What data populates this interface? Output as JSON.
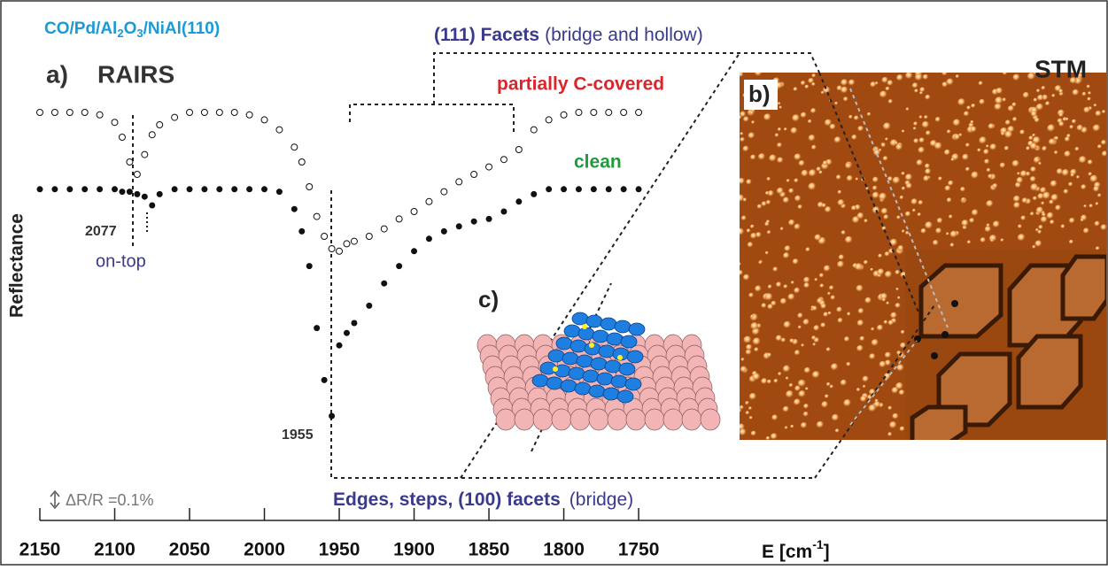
{
  "chart_data": {
    "type": "line",
    "sample_label": {
      "parts": [
        "CO/Pd/Al",
        "2",
        "O",
        "3",
        "/NiAl(110)"
      ]
    },
    "panel_a": "a)",
    "title": "RAIRS",
    "panel_b": "b)",
    "stm_label": "STM",
    "panel_c": "c)",
    "y_label": "Reflectance",
    "x_label": {
      "parts": [
        "E [cm",
        "-1",
        "]"
      ]
    },
    "annotations": {
      "facets111": "(111) Facets",
      "facets111_sites": "(bridge and hollow)",
      "edges": "Edges, steps, (100) facets",
      "edges_sites": "(bridge)",
      "peak_ontop": "2077",
      "ontop": "on-top",
      "peak_bridge": "1955",
      "scale": "ΔR/R =0.1%"
    },
    "xlim": [
      2150,
      1440
    ],
    "xticks": [
      2150,
      2100,
      2050,
      2000,
      1950,
      1900,
      1850,
      1800,
      1750
    ],
    "ylim": [
      0.3,
      -1.5
    ],
    "x": [
      2150,
      2140,
      2130,
      2120,
      2110,
      2100,
      2095,
      2090,
      2085,
      2080,
      2075,
      2070,
      2060,
      2050,
      2040,
      2030,
      2020,
      2010,
      2000,
      1990,
      1980,
      1975,
      1970,
      1965,
      1960,
      1955,
      1950,
      1945,
      1940,
      1930,
      1920,
      1910,
      1900,
      1890,
      1880,
      1870,
      1860,
      1850,
      1840,
      1830,
      1820,
      1810,
      1800,
      1790,
      1780,
      1770,
      1760,
      1750
    ],
    "series": [
      {
        "name": "partially C-covered",
        "color": "#d8262c",
        "marker": "open",
        "values": [
          0,
          0,
          0,
          0,
          -0.01,
          -0.04,
          -0.1,
          -0.2,
          -0.25,
          -0.17,
          -0.09,
          -0.05,
          -0.02,
          0,
          0,
          0,
          0,
          -0.01,
          -0.03,
          -0.07,
          -0.14,
          -0.2,
          -0.3,
          -0.42,
          -0.5,
          -0.55,
          -0.56,
          -0.53,
          -0.52,
          -0.5,
          -0.47,
          -0.43,
          -0.4,
          -0.36,
          -0.32,
          -0.28,
          -0.25,
          -0.22,
          -0.19,
          -0.15,
          -0.07,
          -0.03,
          -0.01,
          0,
          0,
          0,
          0,
          0
        ]
      },
      {
        "name": "clean",
        "color": "#1f9a3c",
        "marker": "filled",
        "values": [
          -0.31,
          -0.31,
          -0.31,
          -0.31,
          -0.31,
          -0.31,
          -0.32,
          -0.32,
          -0.33,
          -0.34,
          -0.375,
          -0.33,
          -0.31,
          -0.31,
          -0.31,
          -0.31,
          -0.31,
          -0.31,
          -0.31,
          -0.32,
          -0.39,
          -0.48,
          -0.62,
          -0.87,
          -1.08,
          -1.225,
          -0.94,
          -0.89,
          -0.85,
          -0.78,
          -0.69,
          -0.62,
          -0.56,
          -0.51,
          -0.48,
          -0.46,
          -0.44,
          -0.43,
          -0.4,
          -0.36,
          -0.33,
          -0.31,
          -0.31,
          -0.31,
          -0.31,
          -0.31,
          -0.31,
          -0.31
        ]
      }
    ]
  }
}
